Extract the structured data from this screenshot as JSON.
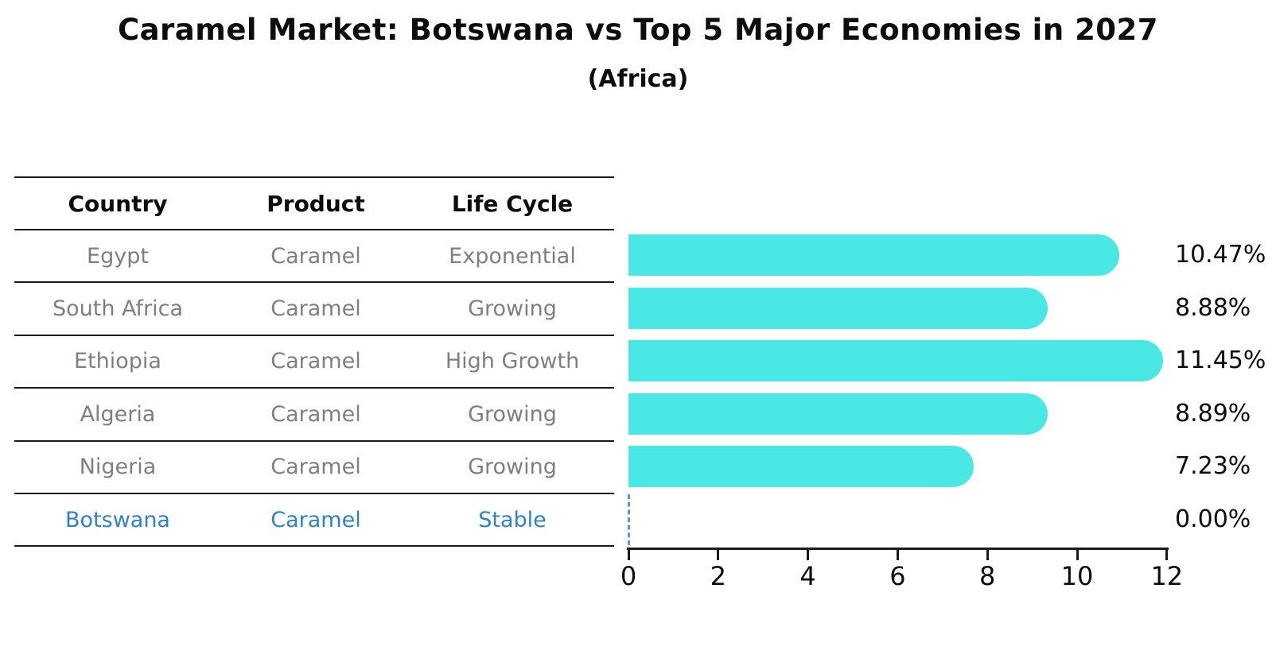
{
  "title": "Caramel Market: Botswana vs Top 5 Major Economies in 2027",
  "subtitle": "(Africa)",
  "table": {
    "headers": {
      "country": "Country",
      "product": "Product",
      "life_cycle": "Life Cycle"
    },
    "rows": [
      {
        "country": "Egypt",
        "product": "Caramel",
        "life_cycle": "Exponential",
        "value_label": "10.47%"
      },
      {
        "country": "South Africa",
        "product": "Caramel",
        "life_cycle": "Growing",
        "value_label": "8.88%"
      },
      {
        "country": "Ethiopia",
        "product": "Caramel",
        "life_cycle": "High Growth",
        "value_label": "11.45%"
      },
      {
        "country": "Algeria",
        "product": "Caramel",
        "life_cycle": "Growing",
        "value_label": "8.89%"
      },
      {
        "country": "Nigeria",
        "product": "Caramel",
        "life_cycle": "Growing",
        "value_label": "7.23%"
      },
      {
        "country": "Botswana",
        "product": "Caramel",
        "life_cycle": "Stable",
        "value_label": "0.00%"
      }
    ],
    "highlighted_row": "Botswana"
  },
  "chart_data": {
    "type": "bar",
    "orientation": "horizontal",
    "title": "Caramel Market: Botswana vs Top 5 Major Economies in 2027",
    "subtitle": "(Africa)",
    "categories": [
      "Egypt",
      "South Africa",
      "Ethiopia",
      "Algeria",
      "Nigeria",
      "Botswana"
    ],
    "values": [
      10.47,
      8.88,
      11.45,
      8.89,
      7.23,
      0.0
    ],
    "value_labels": [
      "10.47%",
      "8.88%",
      "11.45%",
      "8.89%",
      "7.23%",
      "0.00%"
    ],
    "xlabel": "",
    "ylabel": "",
    "xlim": [
      0,
      12
    ],
    "xticks": [
      0,
      2,
      4,
      6,
      8,
      10,
      12
    ],
    "grid": false,
    "legend": false,
    "bar_color": "#4ae8e4",
    "highlight_color": "#2e82c9",
    "zero_marker_style": "dashed-line"
  },
  "axis": {
    "tick_labels": [
      "0",
      "2",
      "4",
      "6",
      "8",
      "10",
      "12"
    ]
  },
  "colors": {
    "bar": "#4ae8e4",
    "highlight_text": "#2e82c9",
    "row_text": "#7f7f7f",
    "header_text": "#0d0d0d",
    "axis": "#1a1a1a",
    "zero_marker": "#5b9bd5"
  }
}
